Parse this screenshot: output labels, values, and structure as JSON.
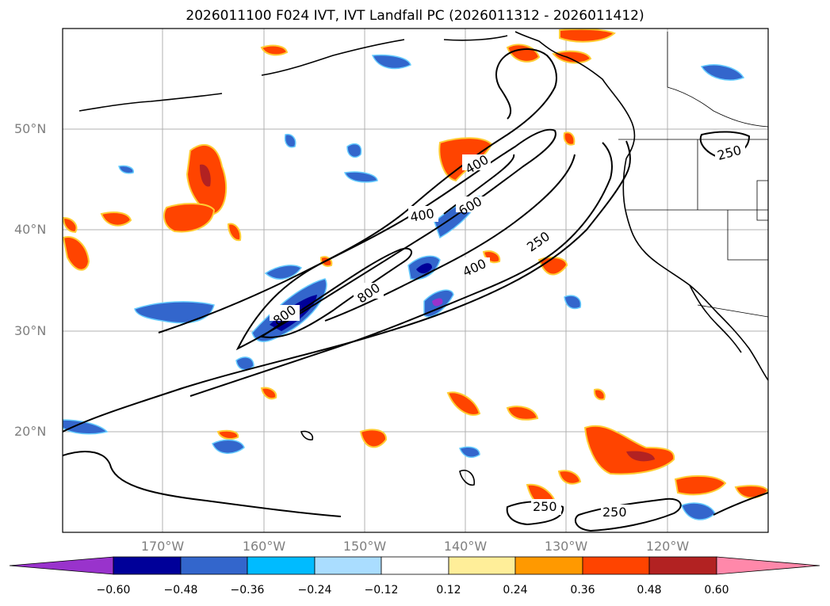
{
  "title": "2026011100 F024 IVT, IVT Landfall PC (2026011312 - 2026011412)",
  "lat_labels": [
    "50°N",
    "40°N",
    "30°N",
    "20°N"
  ],
  "lon_labels": [
    "170°W",
    "160°W",
    "150°W",
    "140°W",
    "130°W",
    "120°W"
  ],
  "contour_labels": [
    "400",
    "600",
    "400",
    "250",
    "400",
    "800",
    "800",
    "250",
    "250",
    "250"
  ],
  "colorbar": {
    "ticks": [
      "−0.60",
      "−0.48",
      "−0.36",
      "−0.24",
      "−0.12",
      "0.12",
      "0.24",
      "0.36",
      "0.48",
      "0.60"
    ],
    "colors": [
      "#9933cc",
      "#000099",
      "#3366cc",
      "#00bbff",
      "#aaddff",
      "#ffffff",
      "#ffee99",
      "#ff9900",
      "#ff4400",
      "#b22222",
      "#ff88aa"
    ]
  }
}
